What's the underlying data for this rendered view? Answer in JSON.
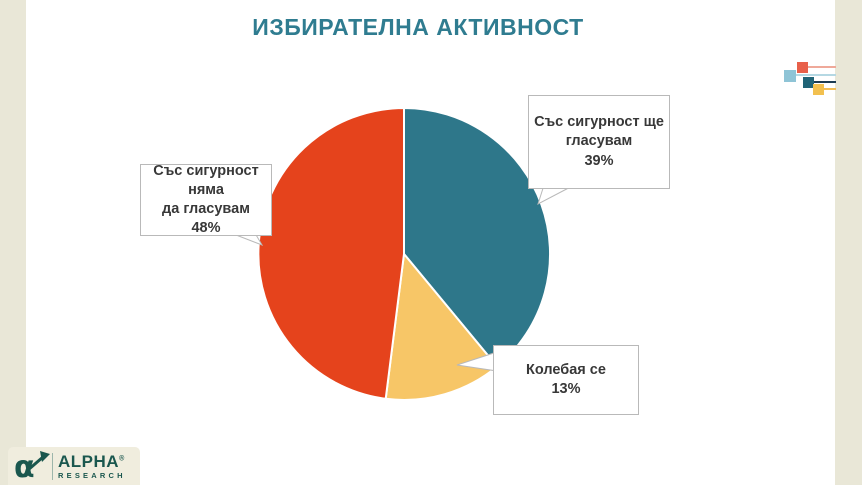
{
  "title": "ИЗБИРАТЕЛНА АКТИВНОСТ",
  "chart_data": {
    "type": "pie",
    "title": "ИЗБИРАТЕЛНА АКТИВНОСТ",
    "direction": "clockwise",
    "start_angle": "12-o-clock",
    "slices": [
      {
        "label": "Със сигурност ще гласувам",
        "value": 39,
        "color": "#2E778A"
      },
      {
        "label": "Колебая се",
        "value": 13,
        "color": "#F7C667"
      },
      {
        "label": "Със сигурност няма да гласувам",
        "value": 48,
        "color": "#E5431C"
      }
    ],
    "labels_as_callouts": true,
    "legend": "none"
  },
  "callouts": {
    "definitely_yes": {
      "line1": "Със сигурност ще",
      "line2": "гласувам",
      "value": "39%"
    },
    "definitely_no": {
      "line1": "Със сигурност няма",
      "line2": "да гласувам",
      "value": "48%"
    },
    "hesitant": {
      "line1": "Колебая се",
      "line2": "",
      "value": "13%"
    }
  },
  "colors": {
    "title": "#2F7C90",
    "background_strip": "#E9E7D7",
    "callout_border": "#b9b9b9",
    "pie_divider": "#ffffff"
  },
  "decor": {
    "squares": [
      {
        "name": "light-blue",
        "color": "#8FC4D6"
      },
      {
        "name": "coral",
        "color": "#E8604A"
      },
      {
        "name": "dark-teal",
        "color": "#206477"
      },
      {
        "name": "yellow",
        "color": "#F2C04F"
      }
    ],
    "lines": [
      {
        "name": "salmon",
        "color": "#EFA99A"
      },
      {
        "name": "pale-blue",
        "color": "#B5D8E3"
      },
      {
        "name": "navy",
        "color": "#1C3B52"
      },
      {
        "name": "yellow",
        "color": "#F3BE56"
      }
    ]
  },
  "logo": {
    "brand": "ALPHA",
    "registered": "®",
    "sub": "RESEARCH",
    "glyph": "α"
  }
}
